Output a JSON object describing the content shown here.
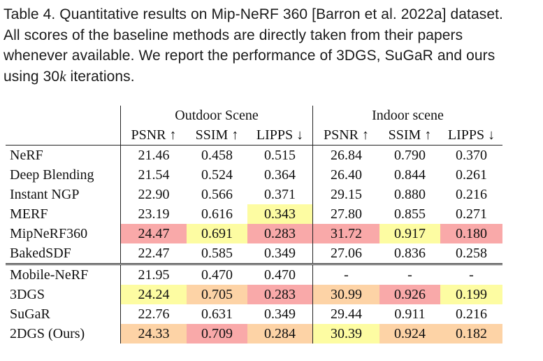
{
  "caption": {
    "line1": "Table 4.  Quantitative results on Mip-NeRF 360 [Barron et al. 2022a] dataset.",
    "line2": "All scores of the baseline methods are directly taken from their papers",
    "line3": "whenever available. We report the performance of 3DGS, SuGaR and ours",
    "line4_prefix": "using 30",
    "line4_k": "k",
    "line4_suffix": " iterations."
  },
  "table": {
    "groups": [
      "Outdoor Scene",
      "Indoor scene"
    ],
    "metrics": [
      "PSNR ↑",
      "SSIM ↑",
      "LIPPS ↓",
      "PSNR ↑",
      "SSIM ↑",
      "LIPPS ↓"
    ],
    "highlight_colors": {
      "red": "#f9a9a9",
      "orange": "#fdd3a6",
      "yellow": "#fdfca2"
    },
    "rows": [
      {
        "method": "NeRF",
        "values": [
          "21.46",
          "0.458",
          "0.515",
          "26.84",
          "0.790",
          "0.370"
        ],
        "hl": [
          "",
          "",
          "",
          "",
          "",
          ""
        ]
      },
      {
        "method": "Deep Blending",
        "values": [
          "21.54",
          "0.524",
          "0.364",
          "26.40",
          "0.844",
          "0.261"
        ],
        "hl": [
          "",
          "",
          "",
          "",
          "",
          ""
        ]
      },
      {
        "method": "Instant NGP",
        "values": [
          "22.90",
          "0.566",
          "0.371",
          "29.15",
          "0.880",
          "0.216"
        ],
        "hl": [
          "",
          "",
          "",
          "",
          "",
          ""
        ]
      },
      {
        "method": "MERF",
        "values": [
          "23.19",
          "0.616",
          "0.343",
          "27.80",
          "0.855",
          "0.271"
        ],
        "hl": [
          "",
          "",
          "yellow",
          "",
          "",
          ""
        ]
      },
      {
        "method": "MipNeRF360",
        "values": [
          "24.47",
          "0.691",
          "0.283",
          "31.72",
          "0.917",
          "0.180"
        ],
        "hl": [
          "red",
          "yellow",
          "red",
          "red",
          "yellow",
          "red"
        ]
      },
      {
        "method": "BakedSDF",
        "values": [
          "22.47",
          "0.585",
          "0.349",
          "27.06",
          "0.836",
          "0.258"
        ],
        "hl": [
          "",
          "",
          "",
          "",
          "",
          ""
        ]
      },
      {
        "method": "Mobile-NeRF",
        "values": [
          "21.95",
          "0.470",
          "0.470",
          "-",
          "-",
          "-"
        ],
        "hl": [
          "",
          "",
          "",
          "",
          "",
          ""
        ]
      },
      {
        "method": "3DGS",
        "values": [
          "24.24",
          "0.705",
          "0.283",
          "30.99",
          "0.926",
          "0.199"
        ],
        "hl": [
          "yellow",
          "orange",
          "red",
          "orange",
          "red",
          "yellow"
        ]
      },
      {
        "method": "SuGaR",
        "values": [
          "22.76",
          "0.631",
          "0.349",
          "29.44",
          "0.911",
          "0.216"
        ],
        "hl": [
          "",
          "",
          "",
          "",
          "",
          ""
        ]
      },
      {
        "method": "2DGS (Ours)",
        "values": [
          "24.33",
          "0.709",
          "0.284",
          "30.39",
          "0.924",
          "0.182"
        ],
        "hl": [
          "orange",
          "red",
          "orange",
          "yellow",
          "orange",
          "orange"
        ]
      }
    ]
  }
}
